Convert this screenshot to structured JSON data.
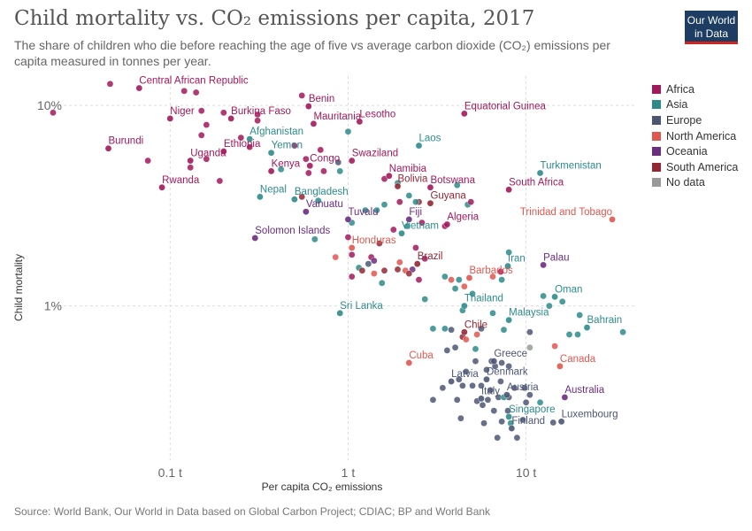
{
  "header": {
    "title": "Child mortality vs. CO₂ emissions per capita, 2017",
    "subtitle": "The share of children who die before reaching the age of five vs average carbon dioxide (CO₂) emissions per capita measured in tonnes per year."
  },
  "logo": {
    "line1": "Our World",
    "line2": "in Data"
  },
  "footer": {
    "source": "Source: World Bank, Our World in Data based on Global Carbon Project; CDIAC; BP and World Bank"
  },
  "chart_data": {
    "type": "scatter",
    "xlabel": "Per capita CO₂ emissions",
    "ylabel": "Child mortality",
    "xscale": "log",
    "yscale": "log",
    "xlim": [
      0.022,
      42
    ],
    "ylim": [
      0.17,
      14
    ],
    "xticks": [
      {
        "value": 0.1,
        "label": "0.1 t"
      },
      {
        "value": 1,
        "label": "1 t"
      },
      {
        "value": 10,
        "label": "10 t"
      }
    ],
    "yticks": [
      {
        "value": 10,
        "label": "10%"
      },
      {
        "value": 1,
        "label": "1%"
      }
    ],
    "grid": true,
    "legend_position": "right",
    "legend": [
      {
        "name": "Africa",
        "color": "#a2185b"
      },
      {
        "name": "Asia",
        "color": "#2e8b8b"
      },
      {
        "name": "Europe",
        "color": "#4c5674"
      },
      {
        "name": "North America",
        "color": "#e0574f"
      },
      {
        "name": "Oceania",
        "color": "#6b2d7d"
      },
      {
        "name": "South America",
        "color": "#932834"
      },
      {
        "name": "No data",
        "color": "#9a9a9a"
      }
    ],
    "labeled_points": [
      {
        "label": "Central African Republic",
        "region": "Africa",
        "x": 0.067,
        "y": 12.2
      },
      {
        "label": "Benin",
        "region": "Africa",
        "x": 0.6,
        "y": 9.9
      },
      {
        "label": "Niger",
        "region": "Africa",
        "x": 0.1,
        "y": 8.6
      },
      {
        "label": "Burkina Faso",
        "region": "Africa",
        "x": 0.22,
        "y": 8.6
      },
      {
        "label": "Mauritania",
        "region": "Africa",
        "x": 0.64,
        "y": 8.1
      },
      {
        "label": "Lesotho",
        "region": "Africa",
        "x": 1.16,
        "y": 8.3
      },
      {
        "label": "Equatorial Guinea",
        "region": "Africa",
        "x": 4.5,
        "y": 9.1
      },
      {
        "label": "Afghanistan",
        "region": "Asia",
        "x": 0.28,
        "y": 6.8
      },
      {
        "label": "Burundi",
        "region": "Africa",
        "x": 0.045,
        "y": 6.1
      },
      {
        "label": "Ethiopia",
        "region": "Africa",
        "x": 0.2,
        "y": 5.9
      },
      {
        "label": "Yemen",
        "region": "Asia",
        "x": 0.37,
        "y": 5.8
      },
      {
        "label": "Laos",
        "region": "Asia",
        "x": 2.5,
        "y": 6.3
      },
      {
        "label": "Uganda",
        "region": "Africa",
        "x": 0.13,
        "y": 5.3
      },
      {
        "label": "Swaziland",
        "region": "Africa",
        "x": 1.05,
        "y": 5.3
      },
      {
        "label": "Congo",
        "region": "Africa",
        "x": 0.61,
        "y": 5.0
      },
      {
        "label": "Kenya",
        "region": "Africa",
        "x": 0.37,
        "y": 4.7
      },
      {
        "label": "Turkmenistan",
        "region": "Asia",
        "x": 12.0,
        "y": 4.6
      },
      {
        "label": "Namibia",
        "region": "Africa",
        "x": 1.7,
        "y": 4.45
      },
      {
        "label": "Rwanda",
        "region": "Africa",
        "x": 0.09,
        "y": 3.9
      },
      {
        "label": "Bolivia",
        "region": "South America",
        "x": 1.9,
        "y": 3.95
      },
      {
        "label": "Botswana",
        "region": "Africa",
        "x": 2.9,
        "y": 3.9
      },
      {
        "label": "South Africa",
        "region": "Africa",
        "x": 8.0,
        "y": 3.8
      },
      {
        "label": "Nepal",
        "region": "Asia",
        "x": 0.32,
        "y": 3.5
      },
      {
        "label": "Bangladesh",
        "region": "Asia",
        "x": 0.5,
        "y": 3.4
      },
      {
        "label": "Guyana",
        "region": "South America",
        "x": 2.9,
        "y": 3.25
      },
      {
        "label": "Vanuatu",
        "region": "Oceania",
        "x": 0.58,
        "y": 2.95
      },
      {
        "label": "Trinidad and Tobago",
        "region": "North America",
        "x": 30.5,
        "y": 2.7
      },
      {
        "label": "Tuvalu",
        "region": "Oceania",
        "x": 1.0,
        "y": 2.7
      },
      {
        "label": "Fiji",
        "region": "Oceania",
        "x": 2.2,
        "y": 2.7
      },
      {
        "label": "Algeria",
        "region": "Africa",
        "x": 3.6,
        "y": 2.55
      },
      {
        "label": "Vietnam",
        "region": "Asia",
        "x": 2.0,
        "y": 2.3
      },
      {
        "label": "Solomon Islands",
        "region": "Oceania",
        "x": 0.3,
        "y": 2.18
      },
      {
        "label": "Honduras",
        "region": "North America",
        "x": 1.05,
        "y": 1.95
      },
      {
        "label": "Iran",
        "region": "Asia",
        "x": 7.9,
        "y": 1.58
      },
      {
        "label": "Palau",
        "region": "Oceania",
        "x": 12.5,
        "y": 1.6
      },
      {
        "label": "Brazil",
        "region": "South America",
        "x": 2.45,
        "y": 1.62
      },
      {
        "label": "Barbados",
        "region": "North America",
        "x": 4.8,
        "y": 1.38
      },
      {
        "label": "Oman",
        "region": "Asia",
        "x": 14.5,
        "y": 1.11
      },
      {
        "label": "Thailand",
        "region": "Asia",
        "x": 4.5,
        "y": 1.0
      },
      {
        "label": "Sri Lanka",
        "region": "Asia",
        "x": 0.9,
        "y": 0.92
      },
      {
        "label": "Malaysia",
        "region": "Asia",
        "x": 8.0,
        "y": 0.85
      },
      {
        "label": "Bahrain",
        "region": "Asia",
        "x": 22.0,
        "y": 0.78
      },
      {
        "label": "Chile",
        "region": "South America",
        "x": 4.5,
        "y": 0.74
      },
      {
        "label": "Greece",
        "region": "Europe",
        "x": 6.6,
        "y": 0.53
      },
      {
        "label": "Canada",
        "region": "North America",
        "x": 15.5,
        "y": 0.5
      },
      {
        "label": "Cuba",
        "region": "North America",
        "x": 2.2,
        "y": 0.52
      },
      {
        "label": "Denmark",
        "region": "Europe",
        "x": 6.0,
        "y": 0.43
      },
      {
        "label": "Latvia",
        "region": "Europe",
        "x": 3.8,
        "y": 0.42
      },
      {
        "label": "Austria",
        "region": "Europe",
        "x": 7.8,
        "y": 0.36
      },
      {
        "label": "Australia",
        "region": "Oceania",
        "x": 16.5,
        "y": 0.35
      },
      {
        "label": "Italy",
        "region": "Europe",
        "x": 5.6,
        "y": 0.345
      },
      {
        "label": "Singapore",
        "region": "Asia",
        "x": 8.0,
        "y": 0.28
      },
      {
        "label": "Luxembourg",
        "region": "Europe",
        "x": 15.8,
        "y": 0.265
      },
      {
        "label": "Finland",
        "region": "Europe",
        "x": 8.3,
        "y": 0.245
      }
    ],
    "points": [
      {
        "region": "Africa",
        "x": 0.046,
        "y": 12.8
      },
      {
        "region": "Africa",
        "x": 0.12,
        "y": 11.8
      },
      {
        "region": "Africa",
        "x": 0.14,
        "y": 11.6
      },
      {
        "region": "Africa",
        "x": 0.55,
        "y": 11.2
      },
      {
        "region": "Africa",
        "x": 0.022,
        "y": 9.2
      },
      {
        "region": "Africa",
        "x": 0.15,
        "y": 9.4
      },
      {
        "region": "Africa",
        "x": 0.2,
        "y": 9.2
      },
      {
        "region": "Africa",
        "x": 0.31,
        "y": 9.0
      },
      {
        "region": "Africa",
        "x": 0.31,
        "y": 8.4
      },
      {
        "region": "Africa",
        "x": 0.16,
        "y": 8.0
      },
      {
        "region": "Africa",
        "x": 0.15,
        "y": 7.1
      },
      {
        "region": "Africa",
        "x": 0.25,
        "y": 6.9
      },
      {
        "region": "Africa",
        "x": 0.5,
        "y": 6.3
      },
      {
        "region": "Africa",
        "x": 0.7,
        "y": 6.0
      },
      {
        "region": "Africa",
        "x": 0.28,
        "y": 6.2
      },
      {
        "region": "Africa",
        "x": 0.075,
        "y": 5.3
      },
      {
        "region": "Africa",
        "x": 0.16,
        "y": 5.4
      },
      {
        "region": "Africa",
        "x": 0.58,
        "y": 5.4
      },
      {
        "region": "Africa",
        "x": 0.13,
        "y": 4.9
      },
      {
        "region": "Africa",
        "x": 0.19,
        "y": 4.2
      },
      {
        "region": "Africa",
        "x": 0.73,
        "y": 4.7
      },
      {
        "region": "Africa",
        "x": 0.6,
        "y": 4.6
      },
      {
        "region": "Europe",
        "x": 0.88,
        "y": 5.2
      },
      {
        "region": "Asia",
        "x": 1.0,
        "y": 7.4
      },
      {
        "region": "Asia",
        "x": 0.42,
        "y": 4.8
      },
      {
        "region": "Asia",
        "x": 0.9,
        "y": 4.7
      },
      {
        "region": "Africa",
        "x": 1.6,
        "y": 4.3
      },
      {
        "region": "Asia",
        "x": 1.9,
        "y": 4.1
      },
      {
        "region": "South America",
        "x": 0.55,
        "y": 3.5
      },
      {
        "region": "Asia",
        "x": 0.68,
        "y": 3.35
      },
      {
        "region": "Asia",
        "x": 1.25,
        "y": 3.0
      },
      {
        "region": "Asia",
        "x": 1.45,
        "y": 3.0
      },
      {
        "region": "Africa",
        "x": 1.95,
        "y": 3.3
      },
      {
        "region": "Asia",
        "x": 1.6,
        "y": 3.2
      },
      {
        "region": "South America",
        "x": 2.5,
        "y": 3.3
      },
      {
        "region": "Asia",
        "x": 2.2,
        "y": 3.55
      },
      {
        "region": "Asia",
        "x": 2.4,
        "y": 3.3
      },
      {
        "region": "Asia",
        "x": 4.7,
        "y": 3.2
      },
      {
        "region": "Africa",
        "x": 4.9,
        "y": 3.3
      },
      {
        "region": "Asia",
        "x": 4.1,
        "y": 4.0
      },
      {
        "region": "Africa",
        "x": 2.6,
        "y": 2.6
      },
      {
        "region": "Africa",
        "x": 3.5,
        "y": 2.5
      },
      {
        "region": "Africa",
        "x": 1.8,
        "y": 2.4
      },
      {
        "region": "Asia",
        "x": 2.15,
        "y": 2.5
      },
      {
        "region": "Asia",
        "x": 1.05,
        "y": 2.6
      },
      {
        "region": "Africa",
        "x": 1.0,
        "y": 2.2
      },
      {
        "region": "Asia",
        "x": 0.65,
        "y": 2.15
      },
      {
        "region": "South America",
        "x": 1.5,
        "y": 2.05
      },
      {
        "region": "Africa",
        "x": 2.4,
        "y": 1.95
      },
      {
        "region": "North America",
        "x": 0.85,
        "y": 1.75
      },
      {
        "region": "Africa",
        "x": 1.05,
        "y": 1.8
      },
      {
        "region": "Africa",
        "x": 1.35,
        "y": 1.75
      },
      {
        "region": "Oceania",
        "x": 1.4,
        "y": 1.68
      },
      {
        "region": "Europe",
        "x": 1.3,
        "y": 1.62
      },
      {
        "region": "Asia",
        "x": 1.15,
        "y": 1.55
      },
      {
        "region": "South America",
        "x": 1.2,
        "y": 1.5
      },
      {
        "region": "Africa",
        "x": 1.05,
        "y": 1.4
      },
      {
        "region": "South America",
        "x": 1.6,
        "y": 1.5
      },
      {
        "region": "North America",
        "x": 1.95,
        "y": 1.65
      },
      {
        "region": "South America",
        "x": 1.9,
        "y": 1.52
      },
      {
        "region": "Africa",
        "x": 2.7,
        "y": 1.72
      },
      {
        "region": "North America",
        "x": 2.1,
        "y": 1.5
      },
      {
        "region": "Oceania",
        "x": 2.3,
        "y": 1.52
      },
      {
        "region": "South America",
        "x": 2.2,
        "y": 1.45
      },
      {
        "region": "North America",
        "x": 1.4,
        "y": 1.45
      },
      {
        "region": "Asia",
        "x": 1.55,
        "y": 1.3
      },
      {
        "region": "Africa",
        "x": 2.5,
        "y": 1.35
      },
      {
        "region": "Asia",
        "x": 3.5,
        "y": 1.4
      },
      {
        "region": "Asia",
        "x": 4.2,
        "y": 1.35
      },
      {
        "region": "North America",
        "x": 3.8,
        "y": 1.35
      },
      {
        "region": "Asia",
        "x": 4.0,
        "y": 1.22
      },
      {
        "region": "Asia",
        "x": 5.0,
        "y": 1.15
      },
      {
        "region": "North America",
        "x": 6.5,
        "y": 1.4
      },
      {
        "region": "Africa",
        "x": 7.2,
        "y": 1.48
      },
      {
        "region": "Asia",
        "x": 8.0,
        "y": 1.85
      },
      {
        "region": "Asia",
        "x": 7.3,
        "y": 1.35
      },
      {
        "region": "North America",
        "x": 4.5,
        "y": 1.25
      },
      {
        "region": "Asia",
        "x": 2.7,
        "y": 1.08
      },
      {
        "region": "Asia",
        "x": 4.4,
        "y": 0.95
      },
      {
        "region": "Asia",
        "x": 6.5,
        "y": 0.92
      },
      {
        "region": "Asia",
        "x": 12.5,
        "y": 1.12
      },
      {
        "region": "Asia",
        "x": 13.5,
        "y": 1.0
      },
      {
        "region": "Asia",
        "x": 16.0,
        "y": 1.05
      },
      {
        "region": "Asia",
        "x": 20.0,
        "y": 0.9
      },
      {
        "region": "Asia",
        "x": 17.5,
        "y": 0.72
      },
      {
        "region": "Asia",
        "x": 19.5,
        "y": 0.72
      },
      {
        "region": "Asia",
        "x": 35.0,
        "y": 0.74
      },
      {
        "region": "Asia",
        "x": 7.5,
        "y": 0.76
      },
      {
        "region": "Europe",
        "x": 10.5,
        "y": 0.74
      },
      {
        "region": "North America",
        "x": 5.3,
        "y": 0.72
      },
      {
        "region": "South America",
        "x": 4.4,
        "y": 0.7
      },
      {
        "region": "Asia",
        "x": 3.0,
        "y": 0.77
      },
      {
        "region": "Asia",
        "x": 3.5,
        "y": 0.77
      },
      {
        "region": "Europe",
        "x": 3.8,
        "y": 0.76
      },
      {
        "region": "Europe",
        "x": 5.6,
        "y": 0.77
      },
      {
        "region": "North America",
        "x": 4.6,
        "y": 0.68
      },
      {
        "region": "Europe",
        "x": 4.0,
        "y": 0.62
      },
      {
        "region": "Europe",
        "x": 3.6,
        "y": 0.6
      },
      {
        "region": "No data",
        "x": 10.5,
        "y": 0.62
      },
      {
        "region": "North America",
        "x": 14.5,
        "y": 0.63
      },
      {
        "region": "Asia",
        "x": 5.2,
        "y": 0.61
      },
      {
        "region": "Europe",
        "x": 5.2,
        "y": 0.53
      },
      {
        "region": "Europe",
        "x": 6.4,
        "y": 0.53
      },
      {
        "region": "Europe",
        "x": 6.7,
        "y": 0.5
      },
      {
        "region": "Europe",
        "x": 7.3,
        "y": 0.52
      },
      {
        "region": "Europe",
        "x": 8.0,
        "y": 0.5
      },
      {
        "region": "Europe",
        "x": 6.0,
        "y": 0.48
      },
      {
        "region": "Europe",
        "x": 4.6,
        "y": 0.47
      },
      {
        "region": "Europe",
        "x": 4.2,
        "y": 0.43
      },
      {
        "region": "Europe",
        "x": 3.4,
        "y": 0.39
      },
      {
        "region": "Europe",
        "x": 4.4,
        "y": 0.4
      },
      {
        "region": "Europe",
        "x": 5.0,
        "y": 0.4
      },
      {
        "region": "Europe",
        "x": 5.6,
        "y": 0.4
      },
      {
        "region": "Europe",
        "x": 6.3,
        "y": 0.38
      },
      {
        "region": "Europe",
        "x": 7.2,
        "y": 0.42
      },
      {
        "region": "Europe",
        "x": 9.8,
        "y": 0.39
      },
      {
        "region": "Europe",
        "x": 8.6,
        "y": 0.39
      },
      {
        "region": "Europe",
        "x": 10.5,
        "y": 0.36
      },
      {
        "region": "Europe",
        "x": 7.0,
        "y": 0.35
      },
      {
        "region": "Europe",
        "x": 8.0,
        "y": 0.35
      },
      {
        "region": "Asia",
        "x": 7.5,
        "y": 0.35
      },
      {
        "region": "Europe",
        "x": 3.0,
        "y": 0.34
      },
      {
        "region": "Europe",
        "x": 4.1,
        "y": 0.34
      },
      {
        "region": "Europe",
        "x": 5.3,
        "y": 0.335
      },
      {
        "region": "Europe",
        "x": 5.7,
        "y": 0.32
      },
      {
        "region": "Europe",
        "x": 6.1,
        "y": 0.34
      },
      {
        "region": "Europe",
        "x": 10.0,
        "y": 0.33
      },
      {
        "region": "Asia",
        "x": 12.0,
        "y": 0.33
      },
      {
        "region": "Europe",
        "x": 6.6,
        "y": 0.3
      },
      {
        "region": "Europe",
        "x": 7.9,
        "y": 0.3
      },
      {
        "region": "Europe",
        "x": 4.3,
        "y": 0.275
      },
      {
        "region": "Europe",
        "x": 5.8,
        "y": 0.26
      },
      {
        "region": "Europe",
        "x": 7.3,
        "y": 0.265
      },
      {
        "region": "Europe",
        "x": 9.6,
        "y": 0.27
      },
      {
        "region": "Asia",
        "x": 8.2,
        "y": 0.26
      },
      {
        "region": "Europe",
        "x": 14.2,
        "y": 0.262
      },
      {
        "region": "Europe",
        "x": 6.9,
        "y": 0.22
      },
      {
        "region": "Europe",
        "x": 8.9,
        "y": 0.22
      }
    ]
  }
}
